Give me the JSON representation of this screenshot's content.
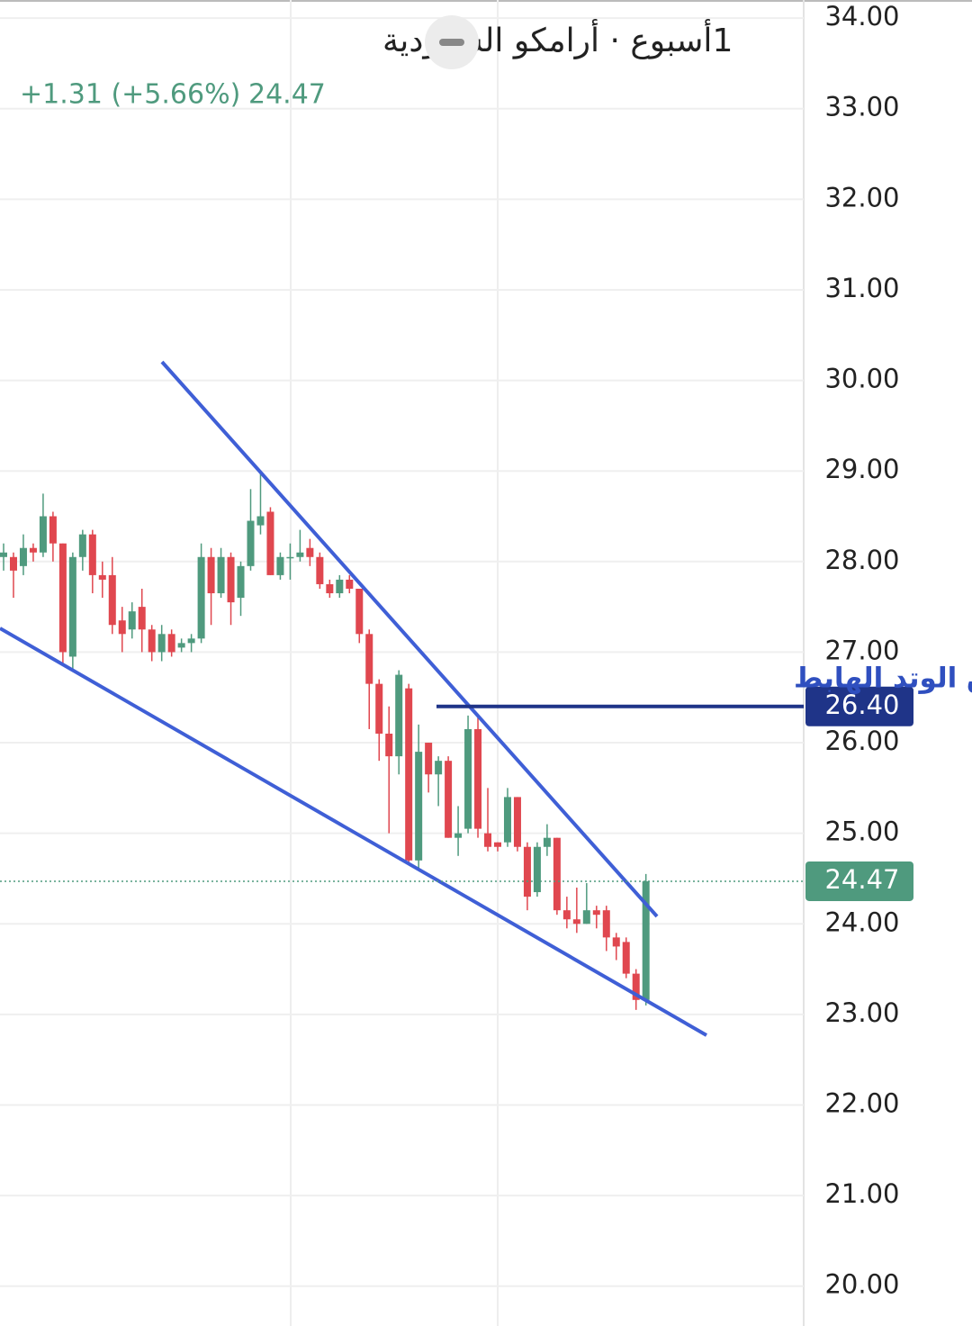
{
  "chart_data": {
    "type": "candlestick",
    "title": "1أسبوع · أرامكو السعودية",
    "change": "+1.31 (+5.66%)",
    "up_color": "#4f9a7e",
    "down_color": "#e0474f",
    "open": [
      28.05,
      28.05,
      27.95,
      28.15,
      28.1,
      28.5,
      28.2,
      26.95,
      28.05,
      28.3,
      27.85,
      27.85,
      27.35,
      27.25,
      27.5,
      27.25,
      27.0,
      27.2,
      27.05,
      27.1,
      27.15,
      28.05,
      27.65,
      28.05,
      27.6,
      27.95,
      28.4,
      28.55,
      27.85,
      28.05,
      28.05,
      28.15,
      28.05,
      27.75,
      27.65,
      27.8,
      27.7,
      27.2,
      26.65,
      26.1,
      25.85,
      26.6,
      24.7,
      26.0,
      25.65,
      25.8,
      24.95,
      25.05,
      26.15,
      25.0,
      24.9,
      24.9,
      25.4,
      24.85,
      24.35,
      24.85,
      24.95,
      24.15,
      24.05,
      24.0,
      24.15,
      24.15,
      23.85,
      23.8,
      23.45,
      23.16
    ],
    "high": [
      28.2,
      28.1,
      28.3,
      28.2,
      28.75,
      28.55,
      28.2,
      28.1,
      28.35,
      28.35,
      28.0,
      28.05,
      27.5,
      27.55,
      27.7,
      27.3,
      27.3,
      27.25,
      27.15,
      27.2,
      28.2,
      28.15,
      28.15,
      28.1,
      28.0,
      28.8,
      29.0,
      28.6,
      28.1,
      28.2,
      28.35,
      28.25,
      28.1,
      27.8,
      27.85,
      27.85,
      27.7,
      27.25,
      26.7,
      26.4,
      26.8,
      26.65,
      26.2,
      26.0,
      25.85,
      25.85,
      25.3,
      26.3,
      26.3,
      25.5,
      24.9,
      25.5,
      25.4,
      24.9,
      24.9,
      25.1,
      24.95,
      24.3,
      24.4,
      24.45,
      24.2,
      24.2,
      23.9,
      23.85,
      23.5,
      24.55
    ],
    "low": [
      27.9,
      27.6,
      27.85,
      28.0,
      28.05,
      28.0,
      26.85,
      26.8,
      27.9,
      27.65,
      27.6,
      27.2,
      27.0,
      27.15,
      27.0,
      26.9,
      26.9,
      26.95,
      27.0,
      27.0,
      27.1,
      27.3,
      27.6,
      27.3,
      27.4,
      27.9,
      28.3,
      27.85,
      27.8,
      27.8,
      28.0,
      27.95,
      27.7,
      27.6,
      27.6,
      27.65,
      27.1,
      26.15,
      25.8,
      25.0,
      25.65,
      24.65,
      24.6,
      25.45,
      25.3,
      24.95,
      24.75,
      25.0,
      24.95,
      24.8,
      24.8,
      24.85,
      24.8,
      24.15,
      24.3,
      24.75,
      24.1,
      23.95,
      23.9,
      24.0,
      23.95,
      23.7,
      23.6,
      23.4,
      23.05,
      23.1
    ],
    "close": [
      28.1,
      27.9,
      28.15,
      28.1,
      28.5,
      28.2,
      27.0,
      28.05,
      28.3,
      27.85,
      27.8,
      27.3,
      27.2,
      27.45,
      27.25,
      27.0,
      27.2,
      27.0,
      27.1,
      27.15,
      28.05,
      27.65,
      28.05,
      27.55,
      27.95,
      28.45,
      28.5,
      27.85,
      28.05,
      28.05,
      28.1,
      28.05,
      27.75,
      27.65,
      27.8,
      27.7,
      27.2,
      26.65,
      26.1,
      25.85,
      26.75,
      24.7,
      25.9,
      25.65,
      25.8,
      24.95,
      25.0,
      26.15,
      25.05,
      24.85,
      24.85,
      25.4,
      24.85,
      24.3,
      24.85,
      24.95,
      24.15,
      24.05,
      24.0,
      24.15,
      24.1,
      23.85,
      23.75,
      23.45,
      23.16,
      24.47
    ],
    "ylim": [
      19.56,
      34.2
    ],
    "yticks": [
      {
        "value": 20,
        "label": "20.00"
      },
      {
        "value": 21,
        "label": "21.00"
      },
      {
        "value": 22,
        "label": "22.00"
      },
      {
        "value": 23,
        "label": "23.00"
      },
      {
        "value": 24,
        "label": "24.00"
      },
      {
        "value": 25,
        "label": "25.00"
      },
      {
        "value": 26,
        "label": "26.00"
      },
      {
        "value": 27,
        "label": "27.00"
      },
      {
        "value": 28,
        "label": "28.00"
      },
      {
        "value": 29,
        "label": "29.00"
      },
      {
        "value": 30,
        "label": "30.00"
      },
      {
        "value": 31,
        "label": "31.00"
      },
      {
        "value": 32,
        "label": "32.00"
      },
      {
        "value": 33,
        "label": "33.00"
      },
      {
        "value": 34,
        "label": "34.00"
      }
    ],
    "grid": true,
    "target": {
      "text": "هدف اختراق الوتد الهابط",
      "value": {
        "value": 26.4,
        "label": "26.40"
      },
      "color": "#1f3488"
    }
  }
}
